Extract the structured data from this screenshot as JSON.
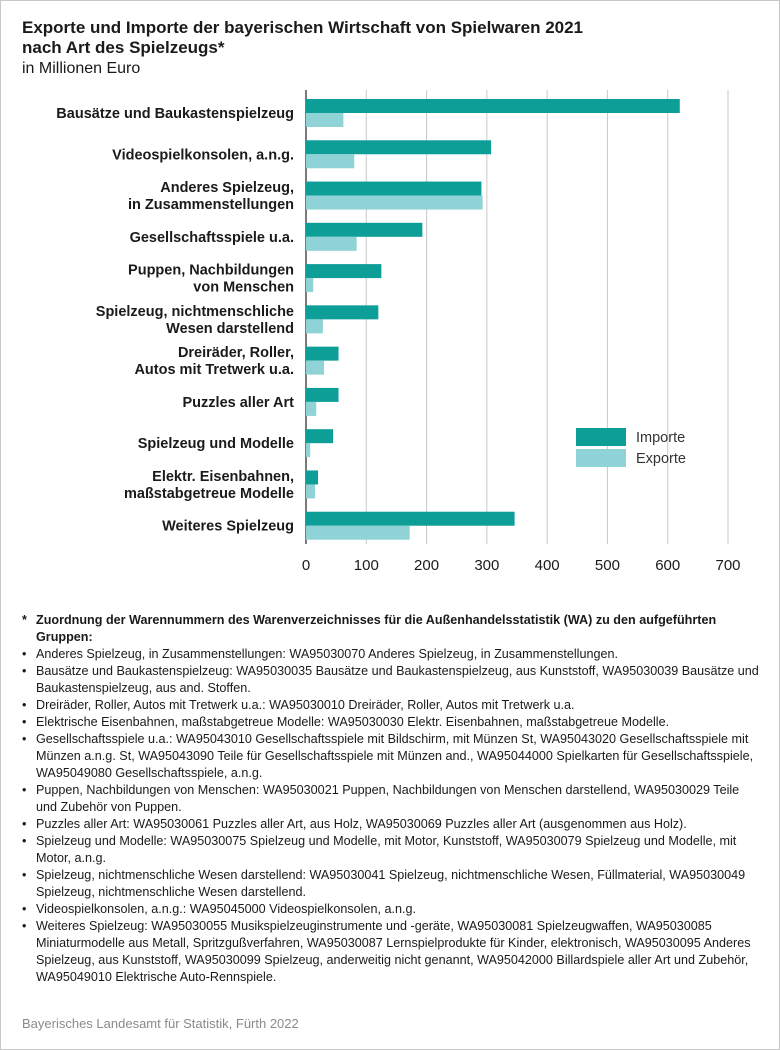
{
  "header": {
    "title_line1": "Exporte und Importe der bayerischen Wirtschaft von Spielwaren 2021",
    "title_line2": "nach Art des Spielzeugs*",
    "subtitle": "in Millionen Euro"
  },
  "colors": {
    "importe": "#0e9e98",
    "exporte": "#8fd3d6",
    "grid": "#c8c8c8",
    "axis": "#333333"
  },
  "chart_data": {
    "type": "bar",
    "orientation": "horizontal",
    "categories": [
      [
        "Bausätze und Baukastenspielzeug"
      ],
      [
        "Videospielkonsolen, a.n.g."
      ],
      [
        "Anderes Spielzeug,",
        "in Zusammenstellungen"
      ],
      [
        "Gesellschaftsspiele u.a."
      ],
      [
        "Puppen, Nachbildungen",
        "von Menschen"
      ],
      [
        "Spielzeug, nichtmenschliche",
        "Wesen darstellend"
      ],
      [
        "Dreiräder, Roller,",
        "Autos mit Tretwerk u.a."
      ],
      [
        "Puzzles aller Art"
      ],
      [
        "Spielzeug und Modelle"
      ],
      [
        "Elektr. Eisenbahnen,",
        "maßstabgetreue Modelle"
      ],
      [
        "Weiteres Spielzeug"
      ]
    ],
    "series": [
      {
        "name": "Importe",
        "values": [
          620,
          307,
          291,
          193,
          125,
          120,
          54,
          54,
          45,
          20,
          346
        ]
      },
      {
        "name": "Exporte",
        "values": [
          62,
          80,
          293,
          84,
          12,
          28,
          30,
          17,
          7,
          15,
          172
        ]
      }
    ],
    "xlim": [
      0,
      700
    ],
    "xticks": [
      "0",
      "100",
      "200",
      "300",
      "400",
      "500",
      "600",
      "700"
    ],
    "grid": true,
    "legend_position": "right"
  },
  "footnote": {
    "star": "*",
    "bullet": "•",
    "heading": "Zuordnung der Warennummern des Warenverzeichnisses für die Außenhandelsstatistik (WA) zu den aufgeführten Gruppen:",
    "items": [
      "Anderes Spielzeug, in Zusammenstellungen: WA95030070 Anderes Spielzeug, in Zusammenstellungen.",
      "Bausätze und Baukastenspielzeug: WA95030035 Bausätze und Baukastenspielzeug, aus Kunststoff, WA95030039 Bausätze und Baukastenspielzeug, aus and. Stoffen.",
      "Dreiräder, Roller, Autos mit Tretwerk u.a.: WA95030010 Dreiräder, Roller, Autos mit Tretwerk u.a.",
      "Elektrische Eisenbahnen, maßstabgetreue Modelle: WA95030030 Elektr. Eisenbahnen, maßstabgetreue Modelle.",
      "Gesellschaftsspiele u.a.: WA95043010 Gesellschaftsspiele mit Bildschirm, mit Münzen St, WA95043020 Gesellschaftsspiele mit Münzen a.n.g. St, WA95043090 Teile für Gesellschaftsspiele mit Münzen and., WA95044000 Spielkarten für Gesellschaftsspiele, WA95049080 Gesellschaftsspiele, a.n.g.",
      "Puppen, Nachbildungen von Menschen: WA95030021 Puppen, Nachbildungen von Menschen darstellend, WA95030029 Teile und Zubehör von Puppen.",
      "Puzzles aller Art: WA95030061 Puzzles aller Art, aus Holz, WA95030069 Puzzles aller Art (ausgenommen aus Holz).",
      "Spielzeug und Modelle: WA95030075 Spielzeug und Modelle, mit Motor, Kunststoff, WA95030079 Spielzeug und Modelle, mit Motor, a.n.g.",
      "Spielzeug, nichtmenschliche Wesen darstellend: WA95030041 Spielzeug, nichtmenschliche Wesen, Füllmaterial, WA95030049 Spielzeug, nichtmenschliche Wesen darstellend.",
      "Videospielkonsolen, a.n.g.: WA95045000 Videospielkonsolen, a.n.g.",
      "Weiteres Spielzeug: WA95030055 Musikspielzeuginstrumente und -geräte, WA95030081 Spielzeugwaffen, WA95030085 Miniaturmodelle aus Metall, Spritzgußverfahren, WA95030087 Lernspielprodukte für Kinder, elektronisch, WA95030095 Anderes Spielzeug, aus Kunststoff, WA95030099 Spielzeug, anderweitig nicht genannt, WA95042000 Billardspiele aller Art und Zubehör, WA95049010 Elektrische Auto-Rennspiele."
    ]
  },
  "source": "Bayerisches Landesamt für Statistik, Fürth 2022"
}
